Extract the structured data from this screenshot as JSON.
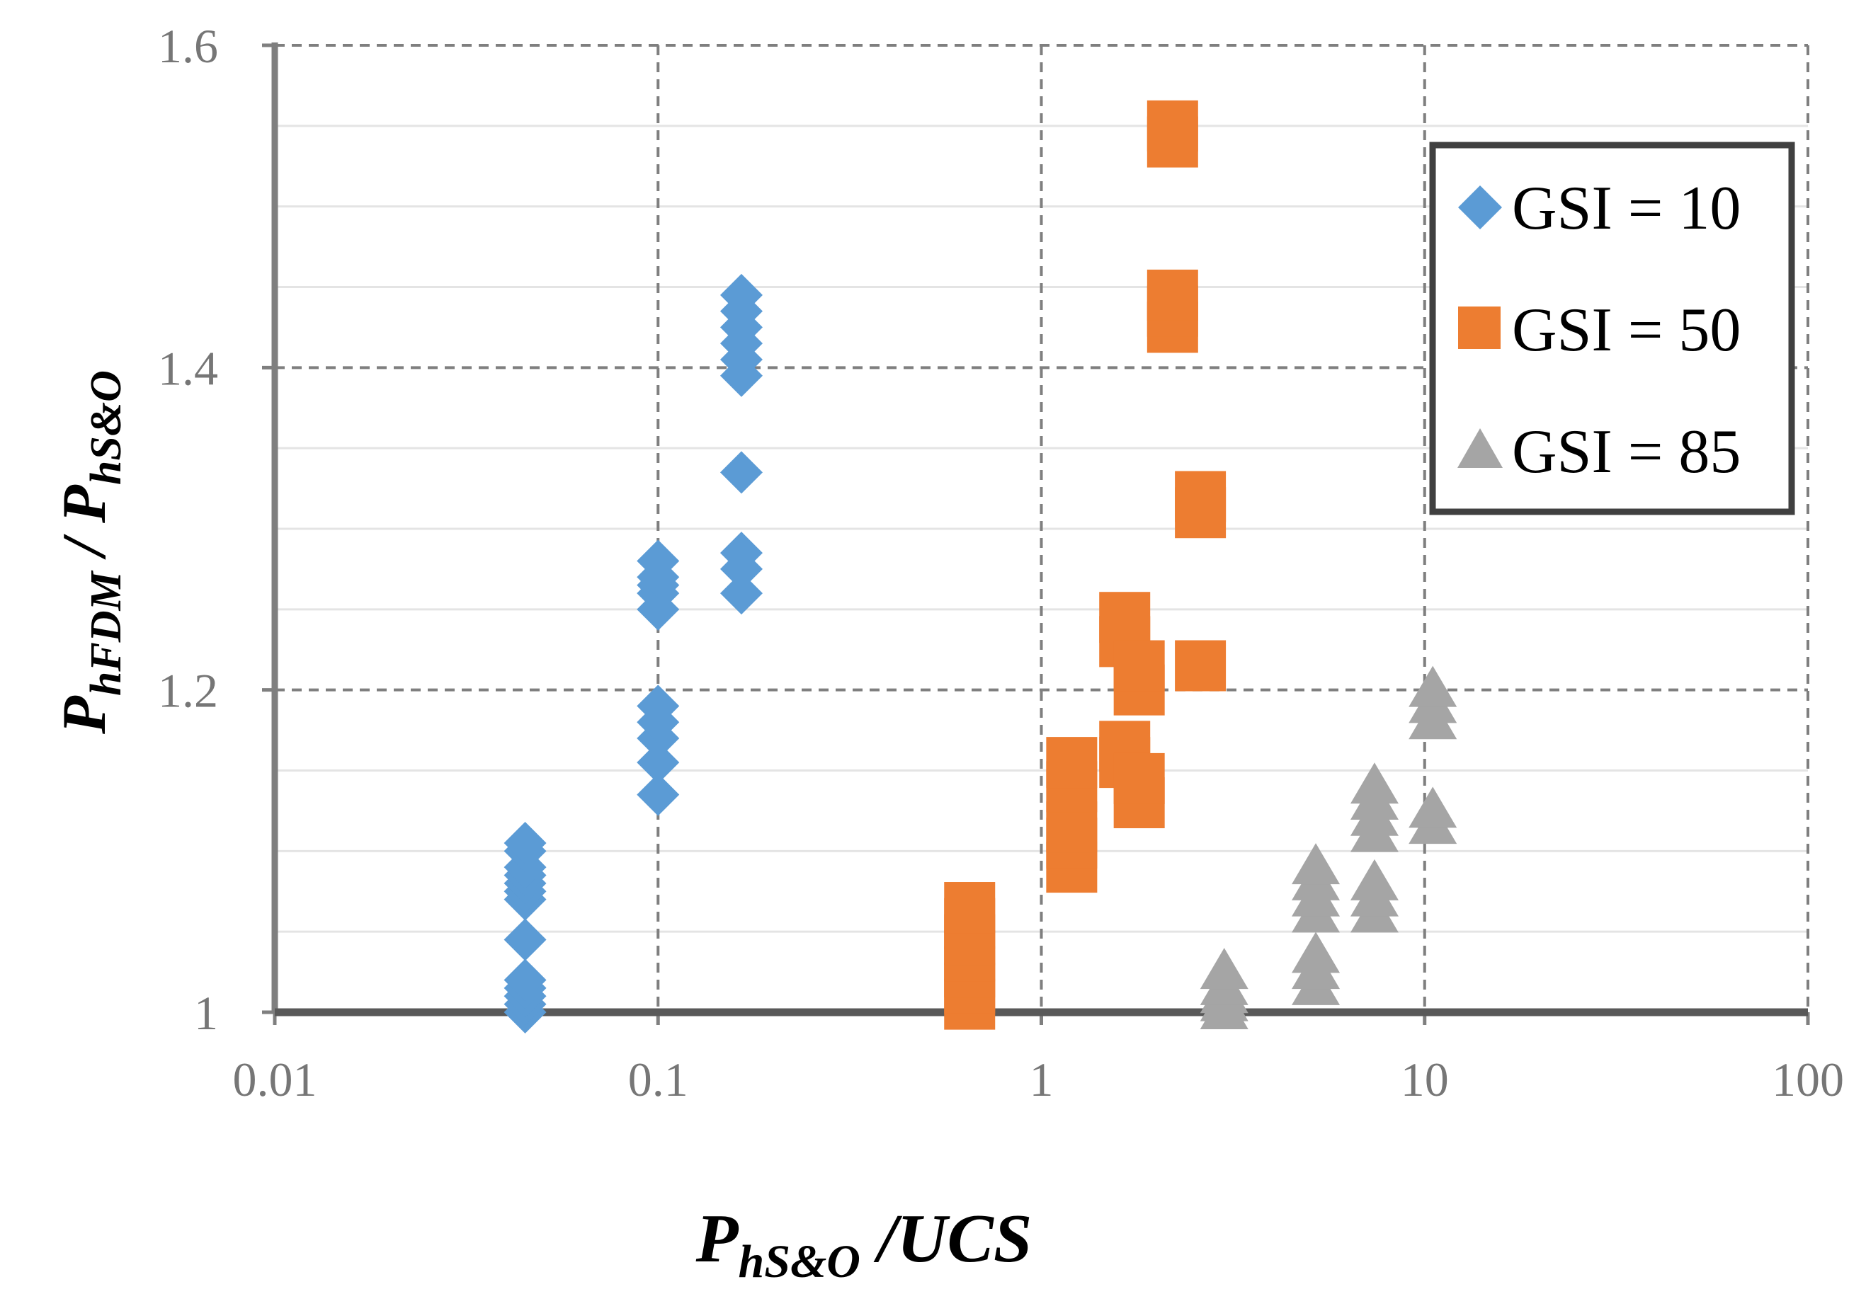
{
  "chart_data": {
    "type": "scatter",
    "title": "",
    "x_scale": "log",
    "xlim": [
      0.01,
      100
    ],
    "ylim": [
      1,
      1.6
    ],
    "x_ticks": [
      "0.01",
      "0.1",
      "1",
      "10",
      "100"
    ],
    "y_ticks": [
      "1",
      "1.2",
      "1.4",
      "1.6"
    ],
    "xlabel": {
      "main": "P",
      "sub": "hS&O",
      "rest": " /UCS"
    },
    "ylabel": {
      "main1": "P",
      "sub1": "hFDM",
      "mid": " / ",
      "main2": "P",
      "sub2": "hS&O"
    },
    "grid": true,
    "legend_position": "top-right",
    "series": [
      {
        "name": "GSI = 10",
        "marker": "diamond",
        "color": "#5B9BD5",
        "points": [
          {
            "x": 0.045,
            "y": 1.0
          },
          {
            "x": 0.045,
            "y": 1.005
          },
          {
            "x": 0.045,
            "y": 1.01
          },
          {
            "x": 0.045,
            "y": 1.015
          },
          {
            "x": 0.045,
            "y": 1.02
          },
          {
            "x": 0.045,
            "y": 1.045
          },
          {
            "x": 0.045,
            "y": 1.07
          },
          {
            "x": 0.045,
            "y": 1.075
          },
          {
            "x": 0.045,
            "y": 1.08
          },
          {
            "x": 0.045,
            "y": 1.085
          },
          {
            "x": 0.045,
            "y": 1.09
          },
          {
            "x": 0.045,
            "y": 1.1
          },
          {
            "x": 0.045,
            "y": 1.105
          },
          {
            "x": 0.1,
            "y": 1.135
          },
          {
            "x": 0.1,
            "y": 1.155
          },
          {
            "x": 0.1,
            "y": 1.17
          },
          {
            "x": 0.1,
            "y": 1.18
          },
          {
            "x": 0.1,
            "y": 1.19
          },
          {
            "x": 0.1,
            "y": 1.25
          },
          {
            "x": 0.1,
            "y": 1.26
          },
          {
            "x": 0.1,
            "y": 1.265
          },
          {
            "x": 0.1,
            "y": 1.27
          },
          {
            "x": 0.1,
            "y": 1.28
          },
          {
            "x": 0.165,
            "y": 1.26
          },
          {
            "x": 0.165,
            "y": 1.275
          },
          {
            "x": 0.165,
            "y": 1.285
          },
          {
            "x": 0.165,
            "y": 1.335
          },
          {
            "x": 0.165,
            "y": 1.395
          },
          {
            "x": 0.165,
            "y": 1.405
          },
          {
            "x": 0.165,
            "y": 1.415
          },
          {
            "x": 0.165,
            "y": 1.425
          },
          {
            "x": 0.165,
            "y": 1.435
          },
          {
            "x": 0.165,
            "y": 1.445
          }
        ]
      },
      {
        "name": "GSI = 50",
        "marker": "square",
        "color": "#ED7D31",
        "points": [
          {
            "x": 0.65,
            "y": 1.005
          },
          {
            "x": 0.65,
            "y": 1.015
          },
          {
            "x": 0.65,
            "y": 1.025
          },
          {
            "x": 0.65,
            "y": 1.035
          },
          {
            "x": 0.65,
            "y": 1.045
          },
          {
            "x": 0.65,
            "y": 1.055
          },
          {
            "x": 0.65,
            "y": 1.065
          },
          {
            "x": 1.2,
            "y": 1.09
          },
          {
            "x": 1.2,
            "y": 1.105
          },
          {
            "x": 1.2,
            "y": 1.115
          },
          {
            "x": 1.2,
            "y": 1.14
          },
          {
            "x": 1.2,
            "y": 1.155
          },
          {
            "x": 1.65,
            "y": 1.155
          },
          {
            "x": 1.65,
            "y": 1.165
          },
          {
            "x": 1.65,
            "y": 1.23
          },
          {
            "x": 1.65,
            "y": 1.245
          },
          {
            "x": 1.8,
            "y": 1.13
          },
          {
            "x": 1.8,
            "y": 1.145
          },
          {
            "x": 1.8,
            "y": 1.2
          },
          {
            "x": 1.8,
            "y": 1.215
          },
          {
            "x": 2.2,
            "y": 1.425
          },
          {
            "x": 2.2,
            "y": 1.435
          },
          {
            "x": 2.2,
            "y": 1.445
          },
          {
            "x": 2.2,
            "y": 1.54
          },
          {
            "x": 2.2,
            "y": 1.55
          },
          {
            "x": 2.6,
            "y": 1.215
          },
          {
            "x": 2.6,
            "y": 1.31
          },
          {
            "x": 2.6,
            "y": 1.32
          }
        ]
      },
      {
        "name": "GSI = 85",
        "marker": "triangle",
        "color": "#A5A5A5",
        "points": [
          {
            "x": 3.0,
            "y": 1.0
          },
          {
            "x": 3.0,
            "y": 1.005
          },
          {
            "x": 3.0,
            "y": 1.01
          },
          {
            "x": 3.0,
            "y": 1.015
          },
          {
            "x": 3.0,
            "y": 1.025
          },
          {
            "x": 5.2,
            "y": 1.015
          },
          {
            "x": 5.2,
            "y": 1.025
          },
          {
            "x": 5.2,
            "y": 1.035
          },
          {
            "x": 5.2,
            "y": 1.06
          },
          {
            "x": 5.2,
            "y": 1.07
          },
          {
            "x": 5.2,
            "y": 1.08
          },
          {
            "x": 5.2,
            "y": 1.09
          },
          {
            "x": 7.4,
            "y": 1.06
          },
          {
            "x": 7.4,
            "y": 1.07
          },
          {
            "x": 7.4,
            "y": 1.08
          },
          {
            "x": 7.4,
            "y": 1.11
          },
          {
            "x": 7.4,
            "y": 1.12
          },
          {
            "x": 7.4,
            "y": 1.13
          },
          {
            "x": 7.4,
            "y": 1.14
          },
          {
            "x": 10.5,
            "y": 1.115
          },
          {
            "x": 10.5,
            "y": 1.125
          },
          {
            "x": 10.5,
            "y": 1.18
          },
          {
            "x": 10.5,
            "y": 1.19
          },
          {
            "x": 10.5,
            "y": 1.2
          }
        ]
      }
    ]
  }
}
